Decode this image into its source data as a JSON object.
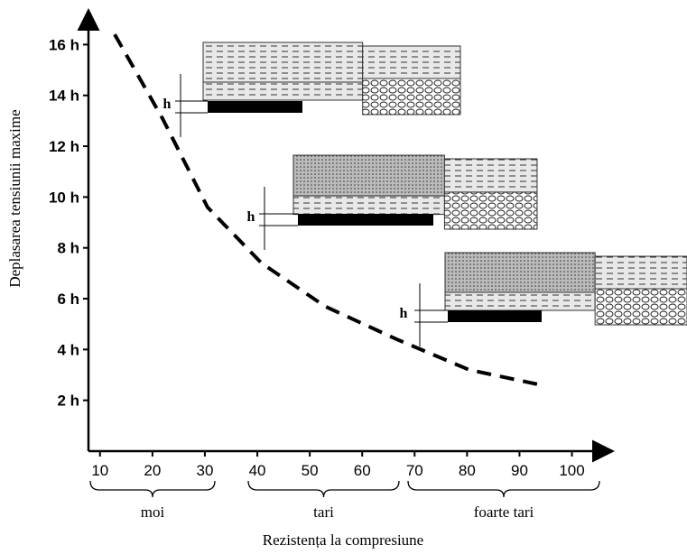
{
  "chart_data": {
    "type": "line",
    "ylabel": "Deplasarea tensiunii maxime",
    "xlabel": "Rezistența la compresiune",
    "series": [
      {
        "name": null,
        "color": "#000000",
        "dashed": true,
        "x": [
          12.8,
          21.9,
          30.5,
          40.8,
          52.9,
          66.6,
          80.4,
          94.2
        ],
        "values": [
          16.4,
          13.1,
          9.6,
          7.4,
          5.7,
          4.4,
          3.2,
          2.6
        ]
      }
    ],
    "xlim": [
      7.8,
      108
    ],
    "ylim": [
      0,
      17.4
    ],
    "xticks": [
      10,
      20,
      30,
      40,
      50,
      60,
      70,
      80,
      90,
      100
    ],
    "yticks": [
      {
        "value": 2,
        "label": "2 h"
      },
      {
        "value": 4,
        "label": "4 h"
      },
      {
        "value": 6,
        "label": "6 h"
      },
      {
        "value": 8,
        "label": "8 h"
      },
      {
        "value": 10,
        "label": "10 h"
      },
      {
        "value": 12,
        "label": "12 h"
      },
      {
        "value": 14,
        "label": "14 h"
      },
      {
        "value": 16,
        "label": "16 h"
      }
    ],
    "groups": [
      "moi",
      "tari",
      "foarte tari"
    ],
    "insets": [
      "h",
      "h",
      "h"
    ]
  }
}
